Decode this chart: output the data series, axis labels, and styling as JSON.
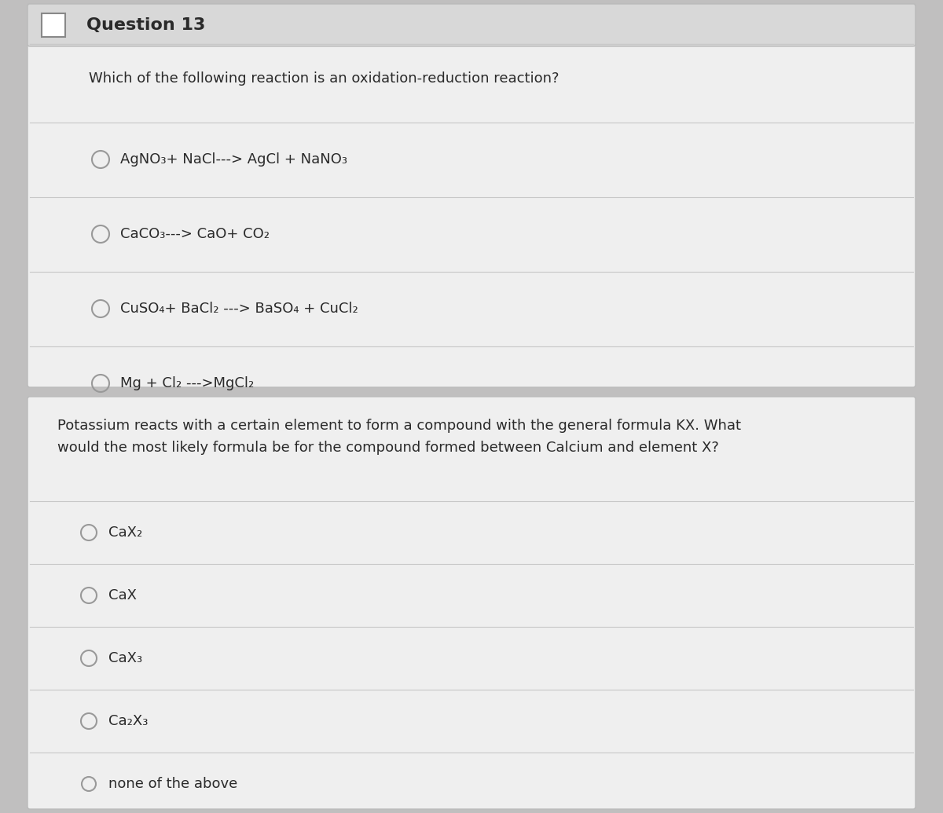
{
  "bg_color": "#c0bfbf",
  "card1_bg": "#efefef",
  "card2_bg": "#efefef",
  "header_bg": "#d8d8d8",
  "line_color": "#c8c8c8",
  "text_color": "#2a2a2a",
  "circle_color": "#999999",
  "q13_header": "Question 13",
  "q13_question": "Which of the following reaction is an oxidation-reduction reaction?",
  "q13_options": [
    "AgNO₃+ NaCl---> AgCl + NaNO₃",
    "CaCO₃---> CaO+ CO₂",
    "CuSO₄+ BaCl₂ ---> BaSO₄ + CuCl₂",
    "Mg + Cl₂ --->MgCl₂"
  ],
  "q14_question": "Potassium reacts with a certain element to form a compound with the general formula KX. What\nwould the most likely formula be for the compound formed between Calcium and element X?",
  "q14_options": [
    "CaX₂",
    "CaX",
    "CaX₃",
    "Ca₂X₃",
    "none of the above"
  ],
  "figsize": [
    12.0,
    10.35
  ],
  "dpi": 100
}
